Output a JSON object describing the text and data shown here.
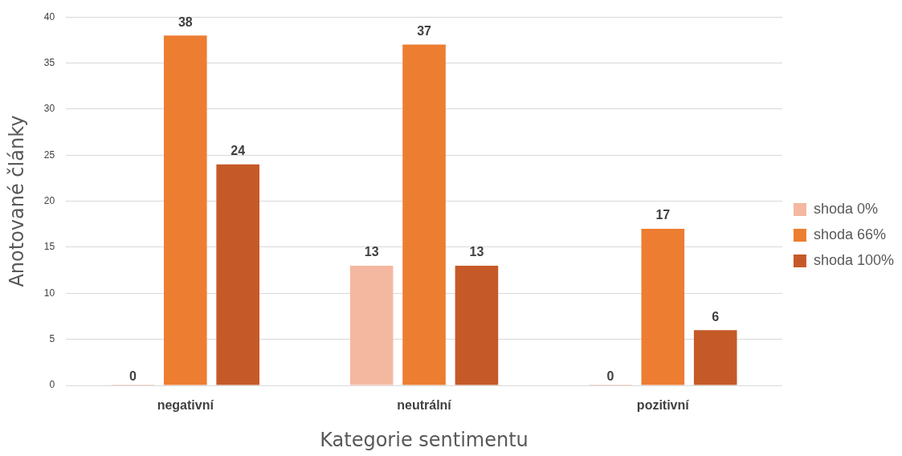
{
  "chart_data": {
    "type": "bar",
    "xlabel": "Kategorie sentimentu",
    "ylabel": "Anotované články",
    "categories": [
      "negativní",
      "neutrální",
      "pozitivní"
    ],
    "series": [
      {
        "name": "shoda 0%",
        "color": "#f4b8a0",
        "values": [
          0,
          13,
          0
        ]
      },
      {
        "name": "shoda 66%",
        "color": "#ed7d31",
        "values": [
          38,
          37,
          17
        ]
      },
      {
        "name": "shoda 100%",
        "color": "#c55a28",
        "values": [
          24,
          13,
          6
        ]
      }
    ],
    "ylim": [
      0,
      40
    ],
    "yticks": [
      0,
      5,
      10,
      15,
      20,
      25,
      30,
      35,
      40
    ],
    "grid": "y",
    "legend": "right",
    "data_labels": true
  }
}
